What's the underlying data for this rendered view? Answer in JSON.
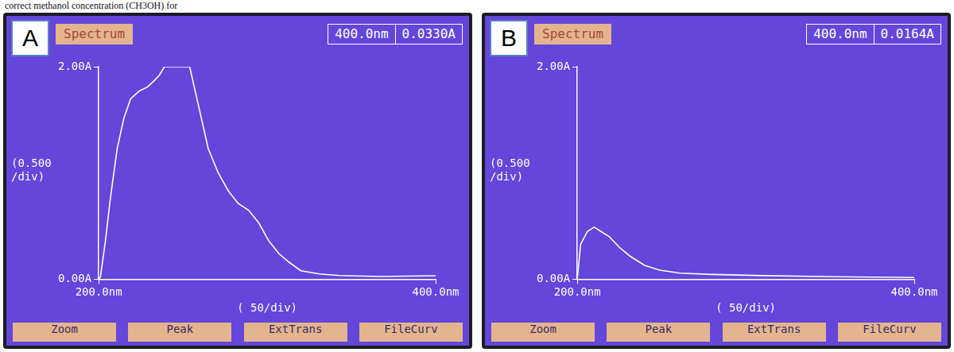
{
  "page_text": "correct methanol concentration (CH3OH) for",
  "chart_data": [
    {
      "panel": "A",
      "header": [
        "Spectrum",
        "400.0nm",
        "0.0330A"
      ],
      "buttons": [
        "Zoom",
        "Peak",
        "ExtTrans",
        "FileCurv"
      ],
      "type": "line",
      "xlabel": "( 50/div)",
      "ylabel": "(0.500\n/div)",
      "x": [
        200,
        201,
        204,
        207,
        211,
        215,
        219,
        224,
        229,
        233,
        236,
        239,
        245,
        254,
        260,
        265,
        271,
        277,
        283,
        289,
        295,
        301,
        307,
        313,
        320,
        331,
        343,
        367,
        400
      ],
      "values": [
        0,
        0.02,
        0.36,
        0.77,
        1.23,
        1.52,
        1.7,
        1.77,
        1.81,
        1.87,
        1.92,
        2.0,
        2.0,
        2.0,
        1.58,
        1.23,
        1.0,
        0.83,
        0.71,
        0.65,
        0.53,
        0.36,
        0.24,
        0.16,
        0.08,
        0.05,
        0.035,
        0.025,
        0.033
      ],
      "color": "#ffffff",
      "xlim": [
        200,
        400
      ],
      "xticks": [
        {
          "value": 200,
          "label": "200.0nm"
        },
        {
          "value": 400,
          "label": "400.0nm"
        }
      ],
      "ylim": [
        0,
        2
      ],
      "yticks": [
        {
          "value": 0,
          "label": "0.00A"
        },
        {
          "value": 2,
          "label": "2.00A"
        }
      ],
      "grid": false
    },
    {
      "panel": "B",
      "header": [
        "Spectrum",
        "400.0nm",
        "0.0164A"
      ],
      "buttons": [
        "Zoom",
        "Peak",
        "ExtTrans",
        "FileCurv"
      ],
      "type": "line",
      "xlabel": "( 50/div)",
      "ylabel": "(0.500\n/div)",
      "x": [
        200,
        202,
        206,
        210,
        214,
        219,
        225,
        231,
        240,
        249,
        261,
        280,
        310,
        352,
        400
      ],
      "values": [
        0,
        0.33,
        0.45,
        0.49,
        0.45,
        0.4,
        0.3,
        0.22,
        0.13,
        0.085,
        0.057,
        0.045,
        0.034,
        0.023,
        0.0164
      ],
      "color": "#ffffff",
      "xlim": [
        200,
        400
      ],
      "xticks": [
        {
          "value": 200,
          "label": "200.0nm"
        },
        {
          "value": 400,
          "label": "400.0nm"
        }
      ],
      "ylim": [
        0,
        2
      ],
      "yticks": [
        {
          "value": 0,
          "label": "0.00A"
        },
        {
          "value": 2,
          "label": "2.00A"
        }
      ],
      "grid": false
    }
  ]
}
